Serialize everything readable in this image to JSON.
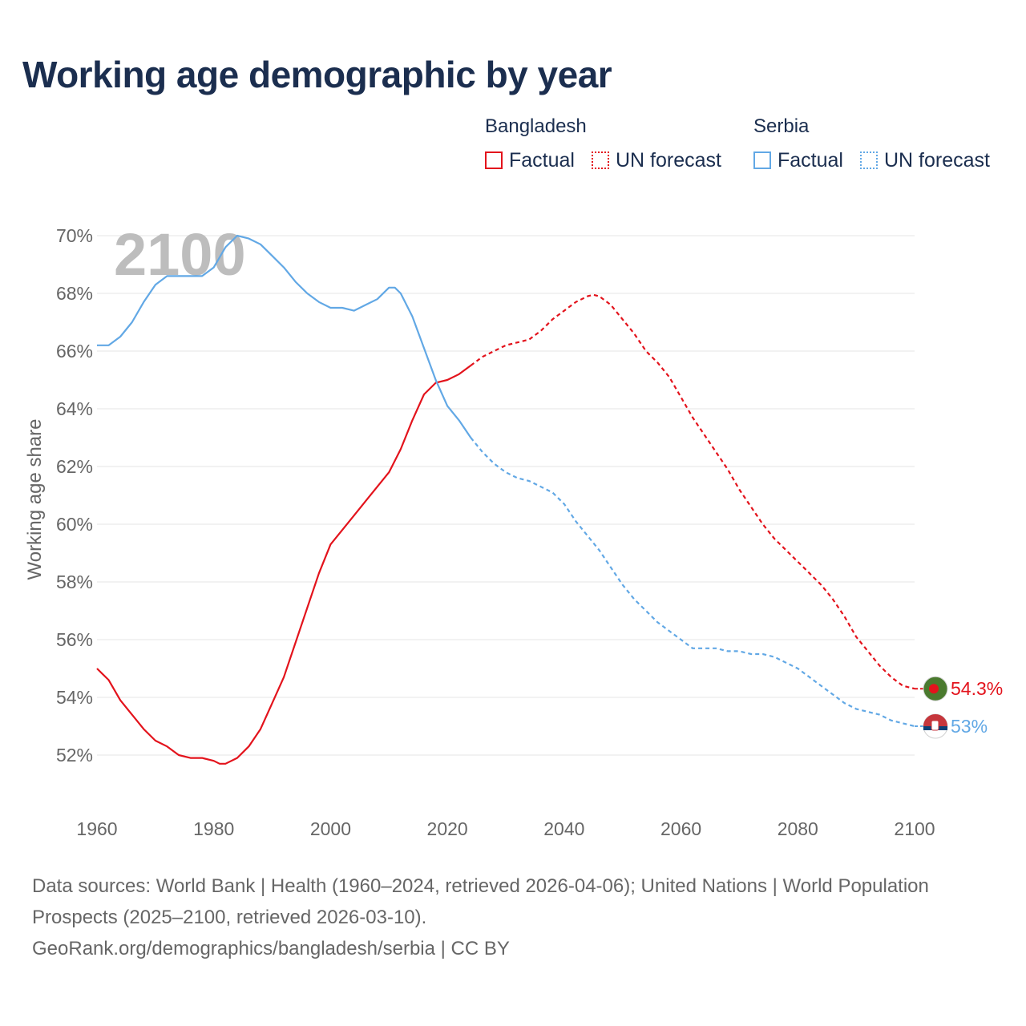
{
  "title": "Working age demographic by year",
  "legend": {
    "groups": [
      {
        "name": "Bangladesh",
        "factual": "Factual",
        "forecast": "UN forecast"
      },
      {
        "name": "Serbia",
        "factual": "Factual",
        "forecast": "UN forecast"
      }
    ]
  },
  "footer": {
    "sources": "Data sources: World Bank | Health (1960–2024, retrieved 2026-04-06); United Nations | World Population Prospects (2025–2100, retrieved 2026-03-10).",
    "credit": "GeoRank.org/demographics/bangladesh/serbia | CC BY"
  },
  "chart_data": {
    "type": "line",
    "year_watermark": "2100",
    "ylabel": "Working age share",
    "xlabel": "",
    "xlim": [
      1960,
      2100
    ],
    "ylim": [
      51,
      70.5
    ],
    "x_ticks": [
      1960,
      1980,
      2000,
      2020,
      2040,
      2060,
      2080,
      2100
    ],
    "x_tick_labels": [
      "1960",
      "1980",
      "2000",
      "2020",
      "2040",
      "2060",
      "2080",
      "2100"
    ],
    "y_ticks": [
      52,
      54,
      56,
      58,
      60,
      62,
      64,
      66,
      68,
      70
    ],
    "y_tick_labels": [
      "52%",
      "54%",
      "56%",
      "58%",
      "60%",
      "62%",
      "64%",
      "66%",
      "68%",
      "70%"
    ],
    "grid": true,
    "forecast_start": 2024,
    "series": [
      {
        "name": "Bangladesh",
        "color": "#e3131c",
        "marker_fill": "#4a7a2e",
        "marker_dot": "#e3131c",
        "end_label": "54.3%",
        "points": [
          [
            1960,
            55.0
          ],
          [
            1962,
            54.6
          ],
          [
            1964,
            53.9
          ],
          [
            1966,
            53.4
          ],
          [
            1968,
            52.9
          ],
          [
            1970,
            52.5
          ],
          [
            1972,
            52.3
          ],
          [
            1974,
            52.0
          ],
          [
            1976,
            51.9
          ],
          [
            1978,
            51.9
          ],
          [
            1980,
            51.8
          ],
          [
            1981,
            51.7
          ],
          [
            1982,
            51.7
          ],
          [
            1984,
            51.9
          ],
          [
            1986,
            52.3
          ],
          [
            1988,
            52.9
          ],
          [
            1990,
            53.8
          ],
          [
            1992,
            54.7
          ],
          [
            1994,
            55.9
          ],
          [
            1996,
            57.1
          ],
          [
            1998,
            58.3
          ],
          [
            2000,
            59.3
          ],
          [
            2002,
            59.8
          ],
          [
            2004,
            60.3
          ],
          [
            2006,
            60.8
          ],
          [
            2008,
            61.3
          ],
          [
            2010,
            61.8
          ],
          [
            2012,
            62.6
          ],
          [
            2014,
            63.6
          ],
          [
            2016,
            64.5
          ],
          [
            2018,
            64.9
          ],
          [
            2020,
            65.0
          ],
          [
            2022,
            65.2
          ],
          [
            2024,
            65.5
          ],
          [
            2026,
            65.8
          ],
          [
            2028,
            66.0
          ],
          [
            2030,
            66.2
          ],
          [
            2032,
            66.3
          ],
          [
            2034,
            66.4
          ],
          [
            2036,
            66.7
          ],
          [
            2038,
            67.1
          ],
          [
            2040,
            67.4
          ],
          [
            2042,
            67.7
          ],
          [
            2044,
            67.9
          ],
          [
            2045,
            67.95
          ],
          [
            2046,
            67.9
          ],
          [
            2048,
            67.6
          ],
          [
            2050,
            67.1
          ],
          [
            2052,
            66.6
          ],
          [
            2054,
            66.0
          ],
          [
            2056,
            65.6
          ],
          [
            2058,
            65.1
          ],
          [
            2060,
            64.4
          ],
          [
            2062,
            63.7
          ],
          [
            2064,
            63.1
          ],
          [
            2066,
            62.5
          ],
          [
            2068,
            61.9
          ],
          [
            2070,
            61.2
          ],
          [
            2072,
            60.6
          ],
          [
            2074,
            60.0
          ],
          [
            2076,
            59.5
          ],
          [
            2078,
            59.1
          ],
          [
            2080,
            58.7
          ],
          [
            2082,
            58.3
          ],
          [
            2084,
            57.9
          ],
          [
            2086,
            57.4
          ],
          [
            2088,
            56.8
          ],
          [
            2090,
            56.1
          ],
          [
            2092,
            55.6
          ],
          [
            2094,
            55.1
          ],
          [
            2096,
            54.7
          ],
          [
            2098,
            54.4
          ],
          [
            2100,
            54.3
          ]
        ]
      },
      {
        "name": "Serbia",
        "color": "#62a8e5",
        "marker_fill": "#ffffff",
        "marker_dot": "#c6363c",
        "end_label": "53%",
        "points": [
          [
            1960,
            66.2
          ],
          [
            1962,
            66.2
          ],
          [
            1964,
            66.5
          ],
          [
            1966,
            67.0
          ],
          [
            1968,
            67.7
          ],
          [
            1970,
            68.3
          ],
          [
            1972,
            68.6
          ],
          [
            1974,
            68.6
          ],
          [
            1976,
            68.6
          ],
          [
            1978,
            68.6
          ],
          [
            1980,
            68.9
          ],
          [
            1982,
            69.6
          ],
          [
            1984,
            70.0
          ],
          [
            1986,
            69.9
          ],
          [
            1988,
            69.7
          ],
          [
            1990,
            69.3
          ],
          [
            1992,
            68.9
          ],
          [
            1994,
            68.4
          ],
          [
            1996,
            68.0
          ],
          [
            1998,
            67.7
          ],
          [
            2000,
            67.5
          ],
          [
            2002,
            67.5
          ],
          [
            2004,
            67.4
          ],
          [
            2006,
            67.6
          ],
          [
            2008,
            67.8
          ],
          [
            2010,
            68.2
          ],
          [
            2011,
            68.2
          ],
          [
            2012,
            68.0
          ],
          [
            2014,
            67.2
          ],
          [
            2016,
            66.1
          ],
          [
            2018,
            65.0
          ],
          [
            2020,
            64.1
          ],
          [
            2022,
            63.6
          ],
          [
            2024,
            63.0
          ],
          [
            2026,
            62.5
          ],
          [
            2028,
            62.1
          ],
          [
            2030,
            61.8
          ],
          [
            2032,
            61.6
          ],
          [
            2034,
            61.5
          ],
          [
            2036,
            61.3
          ],
          [
            2038,
            61.1
          ],
          [
            2040,
            60.7
          ],
          [
            2042,
            60.1
          ],
          [
            2044,
            59.6
          ],
          [
            2046,
            59.1
          ],
          [
            2048,
            58.5
          ],
          [
            2050,
            57.9
          ],
          [
            2052,
            57.4
          ],
          [
            2054,
            57.0
          ],
          [
            2056,
            56.6
          ],
          [
            2058,
            56.3
          ],
          [
            2060,
            56.0
          ],
          [
            2062,
            55.7
          ],
          [
            2064,
            55.7
          ],
          [
            2066,
            55.7
          ],
          [
            2068,
            55.6
          ],
          [
            2070,
            55.6
          ],
          [
            2072,
            55.5
          ],
          [
            2074,
            55.5
          ],
          [
            2076,
            55.4
          ],
          [
            2078,
            55.2
          ],
          [
            2080,
            55.0
          ],
          [
            2082,
            54.7
          ],
          [
            2084,
            54.4
          ],
          [
            2086,
            54.1
          ],
          [
            2088,
            53.8
          ],
          [
            2090,
            53.6
          ],
          [
            2092,
            53.5
          ],
          [
            2094,
            53.4
          ],
          [
            2096,
            53.2
          ],
          [
            2098,
            53.1
          ],
          [
            2100,
            53.0
          ]
        ]
      }
    ]
  }
}
